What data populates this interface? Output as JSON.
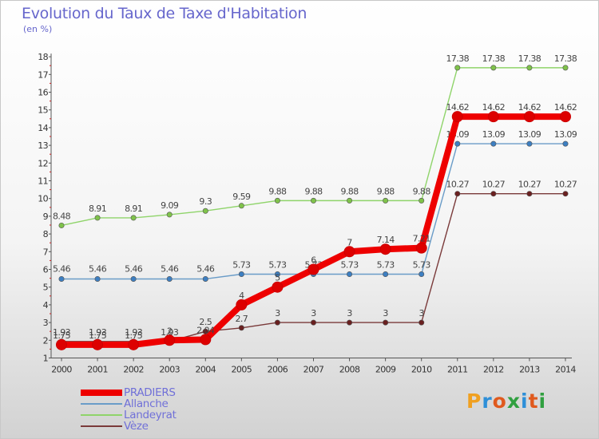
{
  "title": "Evolution du Taux de Taxe d'Habitation",
  "subtitle": "(en %)",
  "logo": {
    "text": "Proxiti",
    "letter_colors": [
      "#f0a020",
      "#2e8fd8",
      "#e05a1e",
      "#30a040",
      "#2e8fd8",
      "#e05a1e",
      "#30a040"
    ]
  },
  "chart_data": {
    "type": "line",
    "x": [
      2000,
      2001,
      2002,
      2003,
      2004,
      2005,
      2006,
      2007,
      2008,
      2009,
      2010,
      2011,
      2012,
      2013,
      2014
    ],
    "ylim": [
      1,
      18
    ],
    "yticks": [
      1,
      2,
      3,
      4,
      5,
      6,
      7,
      8,
      9,
      10,
      11,
      12,
      13,
      14,
      15,
      16,
      17,
      18
    ],
    "grid": false,
    "legend_position": "bottom-left",
    "series": [
      {
        "name": "Landeyrat",
        "color": "#8fd46a",
        "point_color": "#7fc24a",
        "values": [
          8.48,
          8.91,
          8.91,
          9.09,
          9.3,
          9.59,
          9.88,
          9.88,
          9.88,
          9.88,
          9.88,
          17.38,
          17.38,
          17.38,
          17.38
        ],
        "labels": [
          "8.48",
          "8.91",
          "8.91",
          "9.09",
          "9.3",
          "9.59",
          "9.88",
          "9.88",
          "9.88",
          "9.88",
          "9.88",
          "17.38",
          "17.38",
          "17.38",
          "17.38"
        ]
      },
      {
        "name": "Allanche",
        "color": "#6a9cc8",
        "point_color": "#3d7fc2",
        "values": [
          5.46,
          5.46,
          5.46,
          5.46,
          5.46,
          5.73,
          5.73,
          5.73,
          5.73,
          5.73,
          5.73,
          13.09,
          13.09,
          13.09,
          13.09
        ],
        "labels": [
          "5.46",
          "5.46",
          "5.46",
          "5.46",
          "5.46",
          "5.73",
          "5.73",
          "5.73",
          "5.73",
          "5.73",
          "5.73",
          "13.09",
          "13.09",
          "13.09",
          "13.09"
        ]
      },
      {
        "name": "Vèze",
        "color": "#7a3a3a",
        "point_color": "#6a2020",
        "values": [
          1.93,
          1.93,
          1.93,
          1.93,
          2.5,
          2.7,
          3,
          3,
          3,
          3,
          3,
          10.27,
          10.27,
          10.27,
          10.27
        ],
        "labels": [
          "1.93",
          "1.93",
          "1.93",
          "1.93",
          "2.5",
          "2.7",
          "3",
          "3",
          "3",
          "3",
          "3",
          "10.27",
          "10.27",
          "10.27",
          "10.27"
        ]
      },
      {
        "name": "PRADIERS",
        "color": "#ee0000",
        "point_color": "#dd0000",
        "values": [
          1.75,
          1.75,
          1.75,
          2,
          2.04,
          4,
          5,
          6,
          7,
          7.14,
          7.21,
          14.62,
          14.62,
          14.62,
          14.62
        ],
        "labels": [
          "1.75",
          "1.75",
          "1.75",
          "2",
          "2.04",
          "4",
          "5",
          "6",
          "7",
          "7.14",
          "7.21",
          "14.62",
          "14.62",
          "14.62",
          "14.62"
        ]
      }
    ],
    "legend_order": [
      "PRADIERS",
      "Allanche",
      "Landeyrat",
      "Vèze"
    ]
  }
}
